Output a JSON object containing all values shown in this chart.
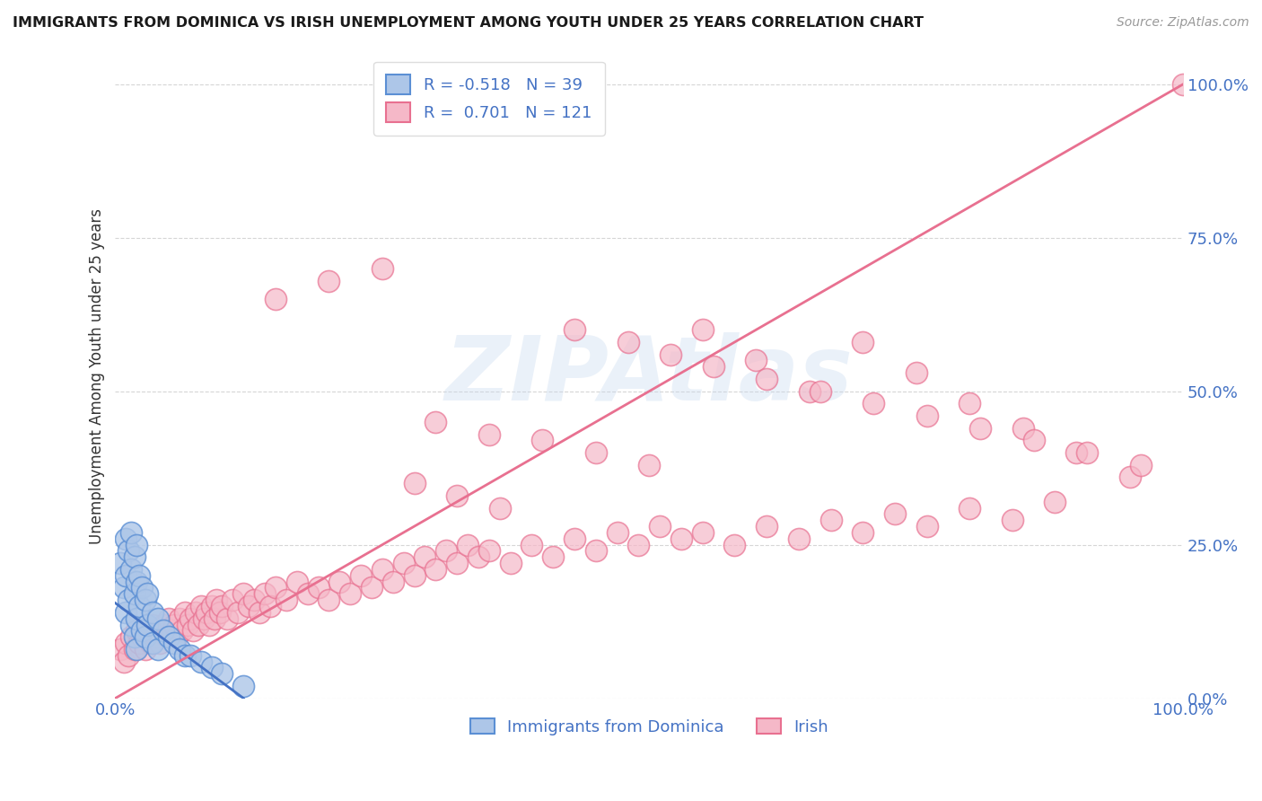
{
  "title": "IMMIGRANTS FROM DOMINICA VS IRISH UNEMPLOYMENT AMONG YOUTH UNDER 25 YEARS CORRELATION CHART",
  "source_text": "Source: ZipAtlas.com",
  "ylabel": "Unemployment Among Youth under 25 years",
  "watermark": "ZIPAtlas",
  "blue_label": "Immigrants from Dominica",
  "pink_label": "Irish",
  "blue_R": -0.518,
  "blue_N": 39,
  "pink_R": 0.701,
  "pink_N": 121,
  "blue_color": "#adc6e8",
  "pink_color": "#f5b8c8",
  "blue_edge_color": "#5b8fd4",
  "pink_edge_color": "#e87090",
  "blue_line_color": "#4472c4",
  "pink_line_color": "#e87090",
  "legend_text_color": "#4472c4",
  "axis_label_color": "#4472c4",
  "background_color": "#ffffff",
  "grid_color": "#cccccc",
  "xlim": [
    0.0,
    1.0
  ],
  "ylim": [
    0.0,
    1.05
  ],
  "blue_line_x": [
    0.0,
    0.12
  ],
  "blue_line_y": [
    0.155,
    0.0
  ],
  "pink_line_x": [
    0.0,
    1.0
  ],
  "pink_line_y": [
    0.0,
    1.0
  ],
  "blue_scatter_x": [
    0.005,
    0.008,
    0.01,
    0.01,
    0.01,
    0.012,
    0.012,
    0.015,
    0.015,
    0.015,
    0.018,
    0.018,
    0.018,
    0.02,
    0.02,
    0.02,
    0.02,
    0.022,
    0.022,
    0.025,
    0.025,
    0.028,
    0.028,
    0.03,
    0.03,
    0.035,
    0.035,
    0.04,
    0.04,
    0.045,
    0.05,
    0.055,
    0.06,
    0.065,
    0.07,
    0.08,
    0.09,
    0.1,
    0.12
  ],
  "blue_scatter_y": [
    0.22,
    0.18,
    0.26,
    0.2,
    0.14,
    0.24,
    0.16,
    0.27,
    0.21,
    0.12,
    0.23,
    0.17,
    0.1,
    0.25,
    0.19,
    0.13,
    0.08,
    0.2,
    0.15,
    0.18,
    0.11,
    0.16,
    0.1,
    0.17,
    0.12,
    0.14,
    0.09,
    0.13,
    0.08,
    0.11,
    0.1,
    0.09,
    0.08,
    0.07,
    0.07,
    0.06,
    0.05,
    0.04,
    0.02
  ],
  "pink_scatter_x": [
    0.005,
    0.008,
    0.01,
    0.012,
    0.015,
    0.018,
    0.02,
    0.022,
    0.025,
    0.028,
    0.03,
    0.033,
    0.035,
    0.038,
    0.04,
    0.042,
    0.045,
    0.048,
    0.05,
    0.053,
    0.055,
    0.058,
    0.06,
    0.063,
    0.065,
    0.068,
    0.07,
    0.073,
    0.075,
    0.078,
    0.08,
    0.083,
    0.085,
    0.088,
    0.09,
    0.093,
    0.095,
    0.098,
    0.1,
    0.105,
    0.11,
    0.115,
    0.12,
    0.125,
    0.13,
    0.135,
    0.14,
    0.145,
    0.15,
    0.16,
    0.17,
    0.18,
    0.19,
    0.2,
    0.21,
    0.22,
    0.23,
    0.24,
    0.25,
    0.26,
    0.27,
    0.28,
    0.29,
    0.3,
    0.31,
    0.32,
    0.33,
    0.34,
    0.35,
    0.37,
    0.39,
    0.41,
    0.43,
    0.45,
    0.47,
    0.49,
    0.51,
    0.53,
    0.55,
    0.58,
    0.61,
    0.64,
    0.67,
    0.7,
    0.73,
    0.76,
    0.8,
    0.84,
    0.88,
    0.3,
    0.35,
    0.4,
    0.45,
    0.5,
    0.28,
    0.32,
    0.36,
    0.15,
    0.2,
    0.25,
    0.55,
    0.6,
    0.65,
    0.7,
    0.75,
    0.8,
    0.85,
    0.9,
    0.95,
    0.43,
    0.48,
    0.52,
    0.56,
    0.61,
    0.66,
    0.71,
    0.76,
    0.81,
    0.86,
    0.91,
    0.96,
    1.0
  ],
  "pink_scatter_y": [
    0.08,
    0.06,
    0.09,
    0.07,
    0.1,
    0.08,
    0.11,
    0.09,
    0.1,
    0.08,
    0.11,
    0.09,
    0.12,
    0.1,
    0.11,
    0.09,
    0.12,
    0.1,
    0.13,
    0.11,
    0.12,
    0.1,
    0.13,
    0.11,
    0.14,
    0.12,
    0.13,
    0.11,
    0.14,
    0.12,
    0.15,
    0.13,
    0.14,
    0.12,
    0.15,
    0.13,
    0.16,
    0.14,
    0.15,
    0.13,
    0.16,
    0.14,
    0.17,
    0.15,
    0.16,
    0.14,
    0.17,
    0.15,
    0.18,
    0.16,
    0.19,
    0.17,
    0.18,
    0.16,
    0.19,
    0.17,
    0.2,
    0.18,
    0.21,
    0.19,
    0.22,
    0.2,
    0.23,
    0.21,
    0.24,
    0.22,
    0.25,
    0.23,
    0.24,
    0.22,
    0.25,
    0.23,
    0.26,
    0.24,
    0.27,
    0.25,
    0.28,
    0.26,
    0.27,
    0.25,
    0.28,
    0.26,
    0.29,
    0.27,
    0.3,
    0.28,
    0.31,
    0.29,
    0.32,
    0.45,
    0.43,
    0.42,
    0.4,
    0.38,
    0.35,
    0.33,
    0.31,
    0.65,
    0.68,
    0.7,
    0.6,
    0.55,
    0.5,
    0.58,
    0.53,
    0.48,
    0.44,
    0.4,
    0.36,
    0.6,
    0.58,
    0.56,
    0.54,
    0.52,
    0.5,
    0.48,
    0.46,
    0.44,
    0.42,
    0.4,
    0.38,
    1.0
  ]
}
